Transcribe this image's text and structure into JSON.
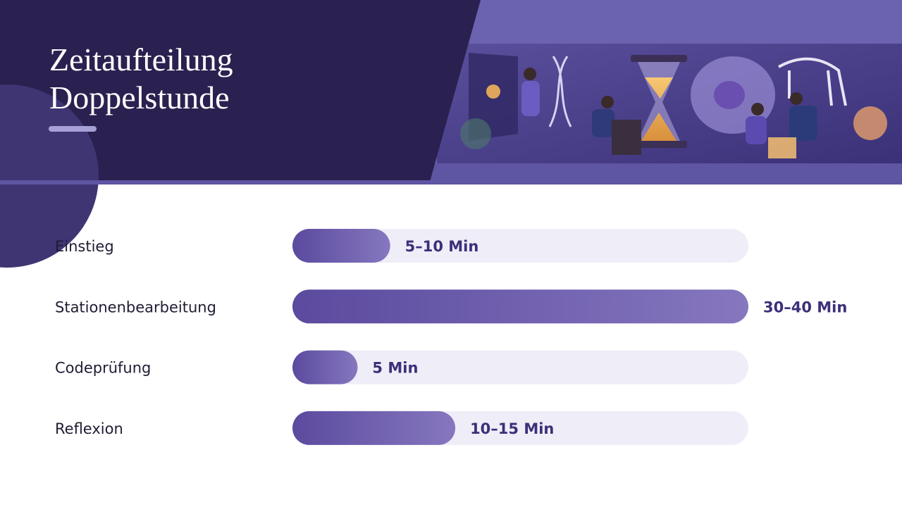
{
  "chart_data": {
    "type": "bar",
    "orientation": "horizontal",
    "title": "Zeitaufteilung Doppelstunde",
    "categories": [
      "Einstieg",
      "Stationenbearbeitung",
      "Codeprüfung",
      "Reflexion"
    ],
    "values": [
      7.5,
      35,
      5,
      12.5
    ],
    "value_labels": [
      "5–10 Min",
      "30–40 Min",
      "5 Min",
      "10–15 Min"
    ],
    "xlim": [
      0,
      35
    ],
    "color": "#5b4a9e",
    "track_color": "#efedf7"
  }
}
